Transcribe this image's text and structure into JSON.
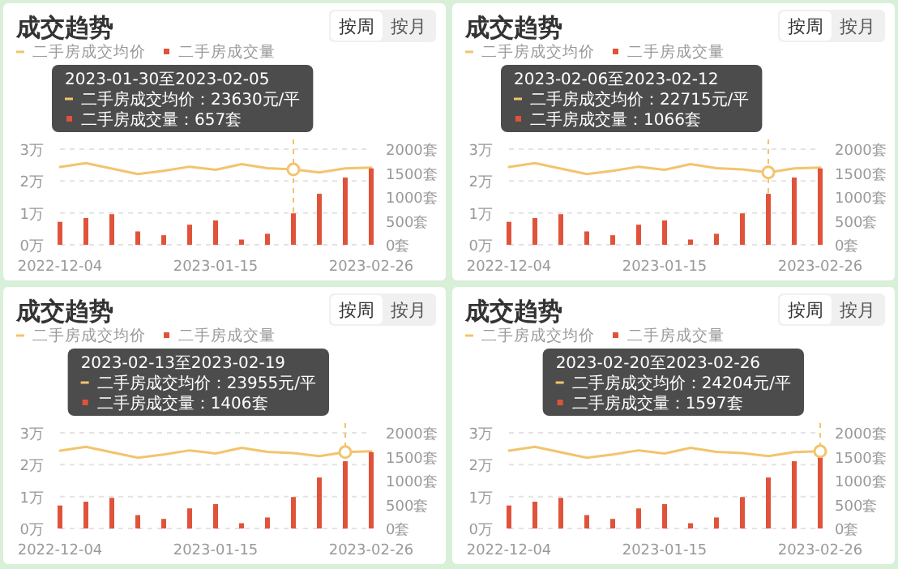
{
  "chart_data": [
    {
      "type": "bar",
      "title": "成交趋势",
      "x": [
        "2022-12-04",
        "2022-12-11",
        "2022-12-18",
        "2022-12-25",
        "2023-01-01",
        "2023-01-08",
        "2023-01-15",
        "2023-01-22",
        "2023-01-29",
        "2023-02-05",
        "2023-02-12",
        "2023-02-19",
        "2023-02-26"
      ],
      "xlim": [
        "2022-12-04",
        "2023-02-26"
      ],
      "xticks": [
        "2022-12-04",
        "2023-01-15",
        "2023-02-26"
      ],
      "ylim": [
        0,
        3
      ],
      "yticks": [
        {
          "value": 0,
          "label": "0万"
        },
        {
          "value": 1,
          "label": "1万"
        },
        {
          "value": 2,
          "label": "2万"
        },
        {
          "value": 3,
          "label": "3万"
        }
      ],
      "y2lim": [
        0,
        2000
      ],
      "y2ticks": [
        {
          "value": 0,
          "label": "0套"
        },
        {
          "value": 500,
          "label": "500套"
        },
        {
          "value": 1000,
          "label": "1000套"
        },
        {
          "value": 1500,
          "label": "1500套"
        },
        {
          "value": 2000,
          "label": "2000套"
        }
      ],
      "grid": "y",
      "legend": "top left",
      "series": [
        {
          "name": "二手房成交均价",
          "type": "line",
          "color": "#f2c46d",
          "values": [
            2.44,
            2.56,
            2.39,
            2.22,
            2.32,
            2.45,
            2.35,
            2.53,
            2.4,
            2.363,
            2.2715,
            2.3955,
            2.4204
          ]
        },
        {
          "name": "二手房成交量",
          "type": "bar",
          "axis": "y2",
          "color": "#e0533a",
          "values": [
            480,
            560,
            640,
            280,
            200,
            420,
            510,
            110,
            230,
            657,
            1066,
            1406,
            1597
          ]
        }
      ],
      "ref_lines": [
        {
          "axis": "x",
          "value": "2023-02-05",
          "color": "#f2c46d",
          "line_style": "dashed"
        }
      ],
      "annotations": [
        "按周",
        "按月",
        "2023-01-30至2023-02-05",
        "二手房成交均价：23630元/平",
        "二手房成交量：657套"
      ]
    },
    {
      "type": "bar",
      "title": "成交趋势",
      "x": [
        "2022-12-04",
        "2022-12-11",
        "2022-12-18",
        "2022-12-25",
        "2023-01-01",
        "2023-01-08",
        "2023-01-15",
        "2023-01-22",
        "2023-01-29",
        "2023-02-05",
        "2023-02-12",
        "2023-02-19",
        "2023-02-26"
      ],
      "xlim": [
        "2022-12-04",
        "2023-02-26"
      ],
      "xticks": [
        "2022-12-04",
        "2023-01-15",
        "2023-02-26"
      ],
      "ylim": [
        0,
        3
      ],
      "yticks": [
        {
          "value": 0,
          "label": "0万"
        },
        {
          "value": 1,
          "label": "1万"
        },
        {
          "value": 2,
          "label": "2万"
        },
        {
          "value": 3,
          "label": "3万"
        }
      ],
      "y2lim": [
        0,
        2000
      ],
      "y2ticks": [
        {
          "value": 0,
          "label": "0套"
        },
        {
          "value": 500,
          "label": "500套"
        },
        {
          "value": 1000,
          "label": "1000套"
        },
        {
          "value": 1500,
          "label": "1500套"
        },
        {
          "value": 2000,
          "label": "2000套"
        }
      ],
      "grid": "y",
      "legend": "top left",
      "series": [
        {
          "name": "二手房成交均价",
          "type": "line",
          "color": "#f2c46d",
          "values": [
            2.44,
            2.56,
            2.39,
            2.22,
            2.32,
            2.45,
            2.35,
            2.53,
            2.4,
            2.363,
            2.2715,
            2.3955,
            2.4204
          ]
        },
        {
          "name": "二手房成交量",
          "type": "bar",
          "axis": "y2",
          "color": "#e0533a",
          "values": [
            480,
            560,
            640,
            280,
            200,
            420,
            510,
            110,
            230,
            657,
            1066,
            1406,
            1597
          ]
        }
      ],
      "ref_lines": [
        {
          "axis": "x",
          "value": "2023-02-12",
          "color": "#f2c46d",
          "line_style": "dashed"
        }
      ],
      "annotations": [
        "按周",
        "按月",
        "2023-02-06至2023-02-12",
        "二手房成交均价：22715元/平",
        "二手房成交量：1066套"
      ]
    },
    {
      "type": "bar",
      "title": "成交趋势",
      "x": [
        "2022-12-04",
        "2022-12-11",
        "2022-12-18",
        "2022-12-25",
        "2023-01-01",
        "2023-01-08",
        "2023-01-15",
        "2023-01-22",
        "2023-01-29",
        "2023-02-05",
        "2023-02-12",
        "2023-02-19",
        "2023-02-26"
      ],
      "xlim": [
        "2022-12-04",
        "2023-02-26"
      ],
      "xticks": [
        "2022-12-04",
        "2023-01-15",
        "2023-02-26"
      ],
      "ylim": [
        0,
        3
      ],
      "yticks": [
        {
          "value": 0,
          "label": "0万"
        },
        {
          "value": 1,
          "label": "1万"
        },
        {
          "value": 2,
          "label": "2万"
        },
        {
          "value": 3,
          "label": "3万"
        }
      ],
      "y2lim": [
        0,
        2000
      ],
      "y2ticks": [
        {
          "value": 0,
          "label": "0套"
        },
        {
          "value": 500,
          "label": "500套"
        },
        {
          "value": 1000,
          "label": "1000套"
        },
        {
          "value": 1500,
          "label": "1500套"
        },
        {
          "value": 2000,
          "label": "2000套"
        }
      ],
      "grid": "y",
      "legend": "top left",
      "series": [
        {
          "name": "二手房成交均价",
          "type": "line",
          "color": "#f2c46d",
          "values": [
            2.44,
            2.56,
            2.39,
            2.22,
            2.32,
            2.45,
            2.35,
            2.53,
            2.4,
            2.363,
            2.2715,
            2.3955,
            2.4204
          ]
        },
        {
          "name": "二手房成交量",
          "type": "bar",
          "axis": "y2",
          "color": "#e0533a",
          "values": [
            480,
            560,
            640,
            280,
            200,
            420,
            510,
            110,
            230,
            657,
            1066,
            1406,
            1597
          ]
        }
      ],
      "ref_lines": [
        {
          "axis": "x",
          "value": "2023-02-19",
          "color": "#f2c46d",
          "line_style": "dashed"
        }
      ],
      "annotations": [
        "按周",
        "按月",
        "2023-02-13至2023-02-19",
        "二手房成交均价：23955元/平",
        "二手房成交量：1406套"
      ]
    },
    {
      "type": "bar",
      "title": "成交趋势",
      "x": [
        "2022-12-04",
        "2022-12-11",
        "2022-12-18",
        "2022-12-25",
        "2023-01-01",
        "2023-01-08",
        "2023-01-15",
        "2023-01-22",
        "2023-01-29",
        "2023-02-05",
        "2023-02-12",
        "2023-02-19",
        "2023-02-26"
      ],
      "xlim": [
        "2022-12-04",
        "2023-02-26"
      ],
      "xticks": [
        "2022-12-04",
        "2023-01-15",
        "2023-02-26"
      ],
      "ylim": [
        0,
        3
      ],
      "yticks": [
        {
          "value": 0,
          "label": "0万"
        },
        {
          "value": 1,
          "label": "1万"
        },
        {
          "value": 2,
          "label": "2万"
        },
        {
          "value": 3,
          "label": "3万"
        }
      ],
      "y2lim": [
        0,
        2000
      ],
      "y2ticks": [
        {
          "value": 0,
          "label": "0套"
        },
        {
          "value": 500,
          "label": "500套"
        },
        {
          "value": 1000,
          "label": "1000套"
        },
        {
          "value": 1500,
          "label": "1500套"
        },
        {
          "value": 2000,
          "label": "2000套"
        }
      ],
      "grid": "y",
      "legend": "top left",
      "series": [
        {
          "name": "二手房成交均价",
          "type": "line",
          "color": "#f2c46d",
          "values": [
            2.44,
            2.56,
            2.39,
            2.22,
            2.32,
            2.45,
            2.35,
            2.53,
            2.4,
            2.363,
            2.2715,
            2.3955,
            2.4204
          ]
        },
        {
          "name": "二手房成交量",
          "type": "bar",
          "axis": "y2",
          "color": "#e0533a",
          "values": [
            480,
            560,
            640,
            280,
            200,
            420,
            510,
            110,
            230,
            657,
            1066,
            1406,
            1597
          ]
        }
      ],
      "ref_lines": [
        {
          "axis": "x",
          "value": "2023-02-26",
          "color": "#f2c46d",
          "line_style": "dashed"
        }
      ],
      "annotations": [
        "按周",
        "按月",
        "2023-02-20至2023-02-26",
        "二手房成交均价：24204元/平",
        "二手房成交量：1597套"
      ]
    }
  ]
}
